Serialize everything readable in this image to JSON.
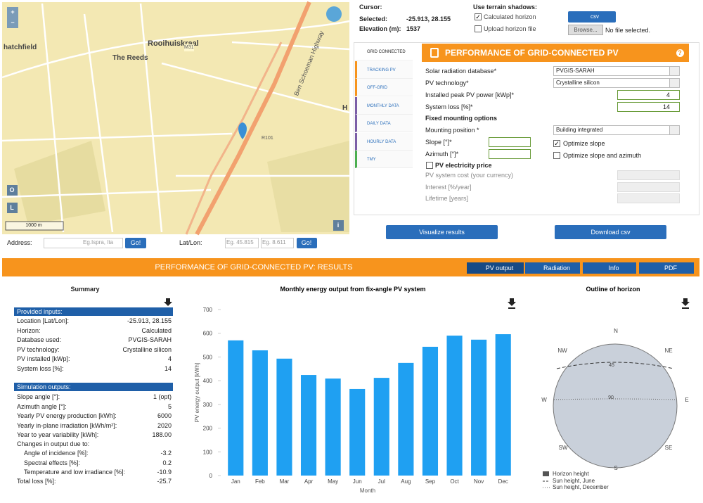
{
  "map": {
    "labels": [
      "Rooihuiskraal",
      "The Reeds",
      "hatchfield",
      "Ben Schoeman Highway",
      "M31",
      "R101",
      "H"
    ],
    "scale": "1000 m",
    "buttons": [
      "+",
      "−",
      "O",
      "L",
      "i"
    ]
  },
  "search": {
    "address_label": "Address:",
    "address_placeholder": "Eg.Ispra, Ita",
    "go": "Go!",
    "latlon_label": "Lat/Lon:",
    "lat_placeholder": "Eg. 45.815",
    "lon_placeholder": "Eg. 8.611"
  },
  "location": {
    "cursor_label": "Cursor:",
    "selected_label": "Selected:",
    "selected": "-25.913, 28.155",
    "elevation_label": "Elevation (m):",
    "elevation": 1537
  },
  "terrain": {
    "title": "Use terrain shadows:",
    "calculated": "Calculated horizon",
    "upload": "Upload horizon file",
    "csv": "csv",
    "browse": "Browse...",
    "no_file": "No file selected."
  },
  "tabs": [
    "GRID CONNECTED",
    "TRACKING PV",
    "OFF-GRID",
    "MONTHLY DATA",
    "DAILY DATA",
    "HOURLY DATA",
    "TMY"
  ],
  "form": {
    "title": "PERFORMANCE OF GRID-CONNECTED PV",
    "help": "?",
    "database_label": "Solar radiation database*",
    "database": "PVGIS-SARAH",
    "technology_label": "PV technology*",
    "technology": "Crystalline silicon",
    "power_label": "Installed peak PV power [kWp]*",
    "power": 4,
    "loss_label": "System loss [%]*",
    "loss": 14,
    "mounting_title": "Fixed mounting options",
    "position_label": "Mounting position *",
    "position": "Building integrated",
    "slope_label": "Slope [°]*",
    "optimize_slope": "Optimize slope",
    "azimuth_label": "Azimuth [°]*",
    "optimize_both": "Optimize slope and azimuth",
    "price_title": "PV electricity price",
    "cost_label": "PV system cost (your currency)",
    "interest_label": "Interest [%/year]",
    "lifetime_label": "Lifetime [years]"
  },
  "actions": [
    "Visualize results",
    "Download csv"
  ],
  "results": {
    "title": "PERFORMANCE OF GRID-CONNECTED PV: RESULTS",
    "buttons": [
      "PV output",
      "Radiation",
      "Info",
      "PDF"
    ]
  },
  "summary": {
    "title": "Summary",
    "inputs_header": "Provided inputs:",
    "inputs": [
      [
        "Location [Lat/Lon]:",
        "-25.913, 28.155"
      ],
      [
        "Horizon:",
        "Calculated"
      ],
      [
        "Database used:",
        "PVGIS-SARAH"
      ],
      [
        "PV technology:",
        "Crystalline silicon"
      ],
      [
        "PV installed [kWp]:",
        4
      ],
      [
        "System loss [%]:",
        14
      ]
    ],
    "outputs_header": "Simulation outputs:",
    "outputs": [
      [
        "Slope angle [°]:",
        "1 (opt)"
      ],
      [
        "Azimuth angle [°]:",
        5
      ],
      [
        "Yearly PV energy production [kWh]:",
        6000
      ],
      [
        "Yearly in-plane irradiation [kWh/m²]:",
        2020
      ],
      [
        "Year to year variability [kWh]:",
        "188.00"
      ]
    ],
    "changes_label": "Changes in output due to:",
    "changes": [
      [
        "Angle of incidence [%]:",
        -3.2
      ],
      [
        "Spectral effects [%]:",
        0.2
      ],
      [
        "Temperature and low irradiance [%]:",
        -10.9
      ]
    ],
    "total": [
      "Total loss [%]:",
      -25.7
    ]
  },
  "chart_data": {
    "type": "bar",
    "title": "Monthly energy output from fix-angle PV system",
    "x_label": "Month",
    "y_label": "PV energy output [kWh]",
    "categories": [
      "Jan",
      "Feb",
      "Mar",
      "Apr",
      "May",
      "Jun",
      "Jul",
      "Aug",
      "Sep",
      "Oct",
      "Nov",
      "Dec"
    ],
    "values": [
      570,
      528,
      493,
      424,
      409,
      365,
      412,
      475,
      543,
      590,
      573,
      596
    ],
    "color": "#1fa0f2",
    "ylim": [
      0,
      700
    ],
    "yticks": [
      0,
      100,
      200,
      300,
      400,
      500,
      600,
      700
    ]
  },
  "horizon": {
    "title": "Outline of horizon",
    "directions": [
      "N",
      "NE",
      "E",
      "SE",
      "S",
      "SW",
      "W",
      "NW"
    ],
    "elevation_labels": [
      45,
      90
    ],
    "legend": [
      "Horizon height",
      "Sun height, June",
      "Sun height, December"
    ]
  }
}
